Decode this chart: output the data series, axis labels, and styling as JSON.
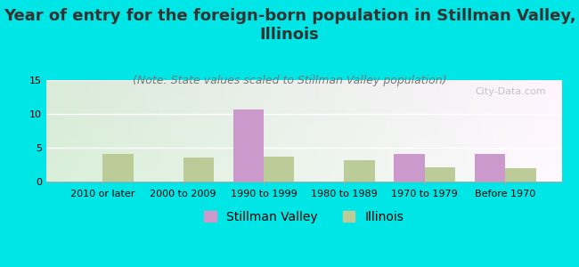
{
  "title": "Year of entry for the foreign-born population in Stillman Valley,\nIllinois",
  "subtitle": "(Note: State values scaled to Stillman Valley population)",
  "categories": [
    "2010 or later",
    "2000 to 2009",
    "1990 to 1999",
    "1980 to 1989",
    "1970 to 1979",
    "Before 1970"
  ],
  "stillman_values": [
    0,
    0,
    10.7,
    0,
    4.1,
    4.1
  ],
  "illinois_values": [
    4.1,
    3.5,
    3.7,
    3.2,
    2.1,
    2.0
  ],
  "stillman_color": "#cc99cc",
  "illinois_color": "#bbcc99",
  "background_color": "#00e5e5",
  "ylim": [
    0,
    15
  ],
  "yticks": [
    0,
    5,
    10,
    15
  ],
  "bar_width": 0.38,
  "title_fontsize": 13,
  "subtitle_fontsize": 9,
  "tick_fontsize": 8,
  "legend_fontsize": 10,
  "watermark": "City-Data.com"
}
